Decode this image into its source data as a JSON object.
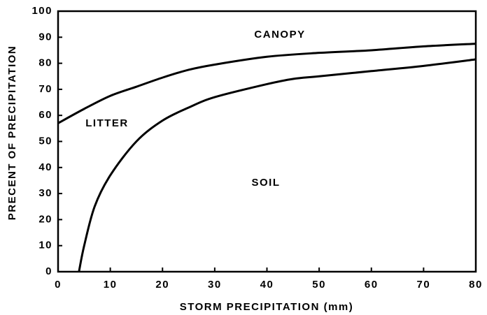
{
  "chart_data": {
    "type": "line",
    "xlabel": "STORM PRECIPITATION (mm)",
    "ylabel": "PRECENT OF PRECIPITATION",
    "annotations": [
      "CANOPY",
      "LITTER",
      "SOIL"
    ],
    "series": [
      {
        "color": "#000000",
        "x": [
          0,
          5,
          10,
          15,
          20,
          25,
          30,
          40,
          50,
          60,
          70,
          80
        ],
        "values": [
          57,
          62.5,
          67.5,
          71,
          74.5,
          77.5,
          79.5,
          82.5,
          84,
          85,
          86.5,
          87.5
        ]
      },
      {
        "color": "#000000",
        "x": [
          4,
          5,
          7,
          10,
          15,
          20,
          25,
          30,
          40,
          45,
          50,
          60,
          70,
          80
        ],
        "values": [
          0,
          10,
          25,
          37,
          50,
          58,
          63,
          67,
          72,
          74,
          75,
          77,
          79,
          81.5
        ]
      }
    ],
    "xlim": [
      0,
      80
    ],
    "xticks": [
      0,
      10,
      20,
      30,
      40,
      50,
      60,
      70,
      80
    ],
    "ylim": [
      0,
      100
    ],
    "yticks": [
      0,
      10,
      20,
      30,
      40,
      50,
      60,
      70,
      80,
      90,
      100
    ]
  }
}
